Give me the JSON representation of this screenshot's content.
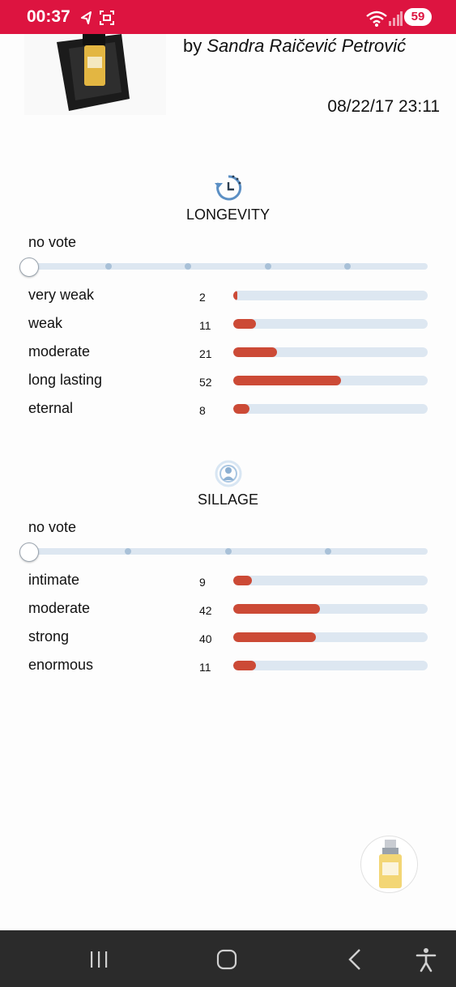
{
  "status_bar": {
    "time": "00:37",
    "battery": "59"
  },
  "header": {
    "by": "by",
    "designer": "Sandra Raičević Petrović",
    "date": "08/22/17 23:11"
  },
  "longevity": {
    "title": "LONGEVITY",
    "no_vote": "no vote",
    "options": [
      {
        "label": "very weak",
        "count": "2",
        "level": 2
      },
      {
        "label": "weak",
        "count": "11",
        "level": 11
      },
      {
        "label": "moderate",
        "count": "21",
        "level": 21
      },
      {
        "label": "long lasting",
        "count": "52",
        "level": 52
      },
      {
        "label": "eternal",
        "count": "8",
        "level": 8
      }
    ]
  },
  "sillage": {
    "title": "SILLAGE",
    "no_vote": "no vote",
    "options": [
      {
        "label": "intimate",
        "count": "9",
        "level": 9
      },
      {
        "label": "moderate",
        "count": "42",
        "level": 42
      },
      {
        "label": "strong",
        "count": "40",
        "level": 40
      },
      {
        "label": "enormous",
        "count": "11",
        "level": 11
      }
    ]
  },
  "colors": {
    "status_bar": "#dd1440",
    "bar_fill": "#cc4a36",
    "bar_track": "#dde7f1",
    "nav_bar": "#2b2b2b"
  }
}
